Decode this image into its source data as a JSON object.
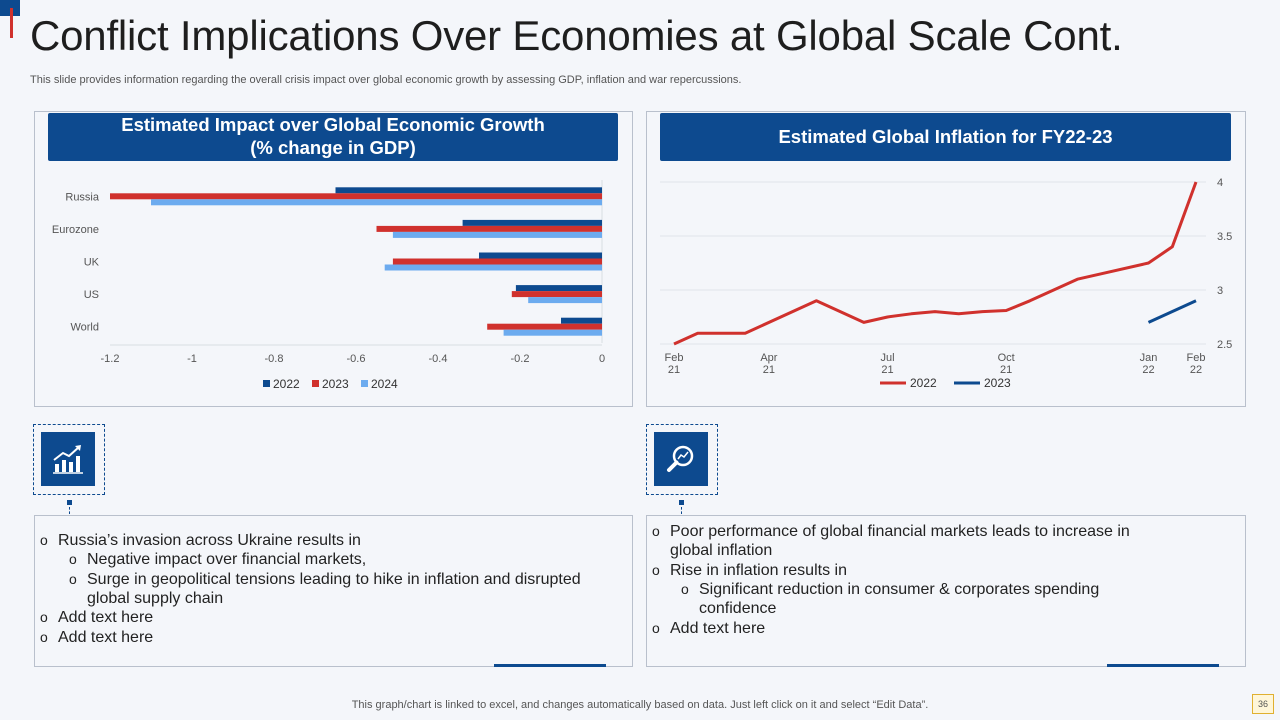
{
  "slide": {
    "title": "Conflict Implications Over Economies at Global Scale Cont.",
    "subtitle": "This slide provides information regarding the overall crisis impact over global economic growth by assessing GDP, inflation and war repercussions.",
    "footer": "This graph/chart is linked to excel,  and changes automatically based on data. Just left click on it and select “Edit Data”.",
    "page_number": "36"
  },
  "left_panel": {
    "heading_line1": "Estimated Impact over Global Economic Growth",
    "heading_line2": "(% change in GDP)"
  },
  "right_panel": {
    "heading": "Estimated Global Inflation for FY22-23"
  },
  "colors": {
    "brand": "#0d4a8f",
    "s2022": "#0d4a8f",
    "s2023": "#d0312d",
    "s2024": "#6cabef",
    "inflation_2022": "#d0312d",
    "inflation_2023": "#0d4a8f"
  },
  "chart_data": [
    {
      "type": "bar",
      "orientation": "horizontal",
      "categories": [
        "Russia",
        "Eurozone",
        "UK",
        "US",
        "World"
      ],
      "series": [
        {
          "name": "2022",
          "values": [
            -0.65,
            -0.34,
            -0.3,
            -0.21,
            -0.1
          ]
        },
        {
          "name": "2023",
          "values": [
            -1.2,
            -0.55,
            -0.51,
            -0.22,
            -0.28
          ]
        },
        {
          "name": "2024",
          "values": [
            -1.1,
            -0.51,
            -0.53,
            -0.18,
            -0.24
          ]
        }
      ],
      "xlim": [
        -1.2,
        0
      ],
      "xticks": [
        "-1.2",
        "-1",
        "-0.8",
        "-0.6",
        "-0.4",
        "-0.2",
        "0"
      ],
      "legend_position": "bottom",
      "grid": false
    },
    {
      "type": "line",
      "x_tick_labels": [
        {
          "line1": "Feb",
          "line2": "21"
        },
        {
          "line1": "Apr",
          "line2": "21"
        },
        {
          "line1": "Jul",
          "line2": "21"
        },
        {
          "line1": "Oct",
          "line2": "21"
        },
        {
          "line1": "Jan",
          "line2": "22"
        },
        {
          "line1": "Feb",
          "line2": "22"
        }
      ],
      "series": [
        {
          "name": "2022",
          "values": [
            {
              "x": 0,
              "y": 2.5
            },
            {
              "x": 0.5,
              "y": 2.6
            },
            {
              "x": 1.5,
              "y": 2.6
            },
            {
              "x": 3,
              "y": 2.9
            },
            {
              "x": 4,
              "y": 2.7
            },
            {
              "x": 4.5,
              "y": 2.75
            },
            {
              "x": 5,
              "y": 2.78
            },
            {
              "x": 5.5,
              "y": 2.8
            },
            {
              "x": 6,
              "y": 2.78
            },
            {
              "x": 6.5,
              "y": 2.8
            },
            {
              "x": 7,
              "y": 2.81
            },
            {
              "x": 7.5,
              "y": 2.9
            },
            {
              "x": 8.5,
              "y": 3.1
            },
            {
              "x": 9,
              "y": 3.15
            },
            {
              "x": 10,
              "y": 3.25
            },
            {
              "x": 10.5,
              "y": 3.4
            },
            {
              "x": 11,
              "y": 4.0
            }
          ]
        },
        {
          "name": "2023",
          "values": [
            {
              "x": 10,
              "y": 2.7
            },
            {
              "x": 11,
              "y": 2.9
            }
          ]
        }
      ],
      "y_axis_position": "right",
      "ylim": [
        2.5,
        4
      ],
      "yticks": [
        "2.5",
        "3",
        "3.5",
        "4"
      ],
      "grid": true,
      "legend_position": "bottom"
    }
  ],
  "left_bullets": [
    {
      "level": 0,
      "text": "Russia’s invasion across Ukraine results in"
    },
    {
      "level": 1,
      "text": "Negative impact over financial markets,"
    },
    {
      "level": 1,
      "text": "Surge in geopolitical tensions leading to hike in inflation and disrupted"
    },
    {
      "level": 1,
      "text": "global supply chain",
      "continuation": true
    },
    {
      "level": 0,
      "text": "Add text here"
    },
    {
      "level": 0,
      "text": "Add text here"
    }
  ],
  "right_bullets": [
    {
      "level": 0,
      "text": "Poor performance of global financial markets leads to increase in"
    },
    {
      "level": 0,
      "text": "global inflation",
      "continuation": true
    },
    {
      "level": 0,
      "text": "Rise in inflation results in"
    },
    {
      "level": 1,
      "text": "Significant reduction in consumer & corporates spending"
    },
    {
      "level": 1,
      "text": "confidence",
      "continuation": true
    },
    {
      "level": 0,
      "text": "Add text here"
    }
  ],
  "bullet_marker": "o",
  "icons": {
    "left": "growth-chart-icon",
    "right": "magnifier-chart-icon"
  }
}
